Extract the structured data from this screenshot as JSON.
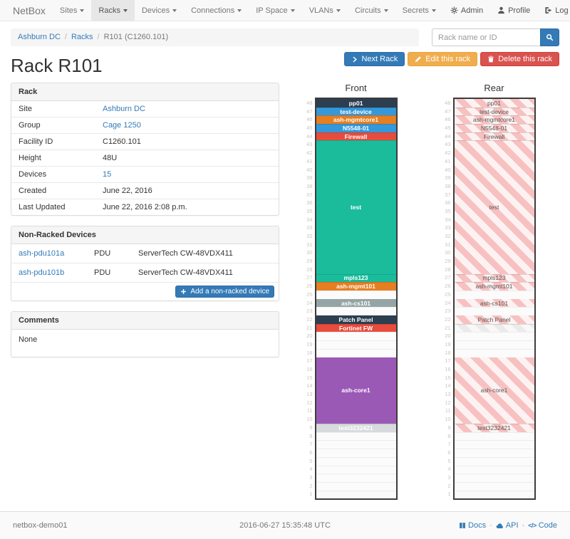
{
  "navbar": {
    "brand": "NetBox",
    "items": [
      {
        "label": "Sites"
      },
      {
        "label": "Racks"
      },
      {
        "label": "Devices"
      },
      {
        "label": "Connections"
      },
      {
        "label": "IP Space"
      },
      {
        "label": "VLANs"
      },
      {
        "label": "Circuits"
      },
      {
        "label": "Secrets"
      }
    ],
    "active": "Racks",
    "right": [
      {
        "icon": "gear-icon",
        "label": "Admin"
      },
      {
        "icon": "user-icon",
        "label": "Profile"
      },
      {
        "icon": "logout-icon",
        "label": "Log out"
      }
    ]
  },
  "breadcrumb": [
    {
      "label": "Ashburn DC",
      "link": true
    },
    {
      "label": "Racks",
      "link": true
    },
    {
      "label": "R101 (C1260.101)",
      "link": false
    }
  ],
  "search": {
    "placeholder": "Rack name or ID",
    "icon": "search-icon"
  },
  "page_title": "Rack R101",
  "actions": [
    {
      "label": "Next Rack",
      "style": "primary",
      "icon": "chevron-right-icon"
    },
    {
      "label": "Edit this rack",
      "style": "warning",
      "icon": "pencil-icon"
    },
    {
      "label": "Delete this rack",
      "style": "danger",
      "icon": "trash-icon"
    }
  ],
  "rack_panel": {
    "title": "Rack",
    "rows": [
      {
        "label": "Site",
        "value": "Ashburn DC",
        "link": true
      },
      {
        "label": "Group",
        "value": "Cage 1250",
        "link": true
      },
      {
        "label": "Facility ID",
        "value": "C1260.101",
        "link": false
      },
      {
        "label": "Height",
        "value": "48U",
        "link": false
      },
      {
        "label": "Devices",
        "value": "15",
        "link": true
      },
      {
        "label": "Created",
        "value": "June 22, 2016",
        "link": false
      },
      {
        "label": "Last Updated",
        "value": "June 22, 2016 2:08 p.m.",
        "link": false
      }
    ]
  },
  "nonracked_panel": {
    "title": "Non-Racked Devices",
    "devices": [
      {
        "name": "ash-pdu101a",
        "role": "PDU",
        "type": "ServerTech CW-48VDX411"
      },
      {
        "name": "ash-pdu101b",
        "role": "PDU",
        "type": "ServerTech CW-48VDX411"
      }
    ],
    "add_button": {
      "label": "Add a non-racked device",
      "icon": "plus-icon"
    }
  },
  "comments_panel": {
    "title": "Comments",
    "body": "None"
  },
  "rack_units": 48,
  "elevations": {
    "front": {
      "title": "Front",
      "blocks": [
        {
          "label": "pp01",
          "units": 1,
          "color": "#2c3e50"
        },
        {
          "label": "test-device",
          "units": 1,
          "color": "#3498db"
        },
        {
          "label": "ash-mgmtcore1",
          "units": 1,
          "color": "#e67e22"
        },
        {
          "label": "N5548-01",
          "units": 1,
          "color": "#3498db"
        },
        {
          "label": "Firewall",
          "units": 1,
          "color": "#e74c3c"
        },
        {
          "label": "test",
          "units": 16,
          "color": "#1abc9c"
        },
        {
          "label": "mpls123",
          "units": 1,
          "color": "#1abc9c"
        },
        {
          "label": "ash-mgmt101",
          "units": 1,
          "color": "#e67e22"
        },
        {
          "empty": true,
          "units": 1
        },
        {
          "label": "ash-cs101",
          "units": 1,
          "color": "#95a5a6"
        },
        {
          "empty": true,
          "units": 1
        },
        {
          "label": "Patch Panel",
          "units": 1,
          "color": "#2c3e50"
        },
        {
          "label": "Fortinet FW",
          "units": 1,
          "color": "#e74c3c"
        },
        {
          "empty": true,
          "units": 3
        },
        {
          "label": "ash-core1",
          "units": 8,
          "color": "#9b59b6"
        },
        {
          "label": "test3232421",
          "units": 1,
          "color": "#d8dbdd"
        },
        {
          "empty": true,
          "units": 8
        }
      ]
    },
    "rear": {
      "title": "Rear",
      "blocks": [
        {
          "label": "pp01",
          "units": 1,
          "stripe": "pink"
        },
        {
          "label": "test-device",
          "units": 1,
          "stripe": "pink"
        },
        {
          "label": "ash-mgmtcore1",
          "units": 1,
          "stripe": "pink"
        },
        {
          "label": "N5548-01",
          "units": 1,
          "stripe": "pink"
        },
        {
          "label": "Firewall",
          "units": 1,
          "stripe": "pink"
        },
        {
          "label": "test",
          "units": 16,
          "stripe": "pink"
        },
        {
          "label": "mpls123",
          "units": 1,
          "stripe": "pink"
        },
        {
          "label": "ash-mgmt101",
          "units": 1,
          "stripe": "pink"
        },
        {
          "empty": true,
          "units": 1
        },
        {
          "label": "ash-cs101",
          "units": 1,
          "stripe": "pink"
        },
        {
          "empty": true,
          "units": 1
        },
        {
          "label": "Patch Panel",
          "units": 1,
          "stripe": "pink"
        },
        {
          "label": "",
          "units": 1,
          "stripe": "gray"
        },
        {
          "empty": true,
          "units": 3
        },
        {
          "label": "ash-core1",
          "units": 8,
          "stripe": "pink"
        },
        {
          "label": "test3232421",
          "units": 1,
          "stripe": "pink"
        },
        {
          "empty": true,
          "units": 8
        }
      ]
    }
  },
  "footer": {
    "hostname": "netbox-demo01",
    "timestamp": "2016-06-27 15:35:48 UTC",
    "links": [
      {
        "icon": "book-icon",
        "label": "Docs"
      },
      {
        "icon": "cloud-icon",
        "label": "API"
      },
      {
        "icon": "code-icon",
        "label": "Code"
      }
    ]
  },
  "colors": {
    "link": "#337ab7",
    "primary": "#337ab7",
    "warning": "#f0ad4e",
    "danger": "#d9534f",
    "rear_stripe": "#f8c1c1"
  }
}
